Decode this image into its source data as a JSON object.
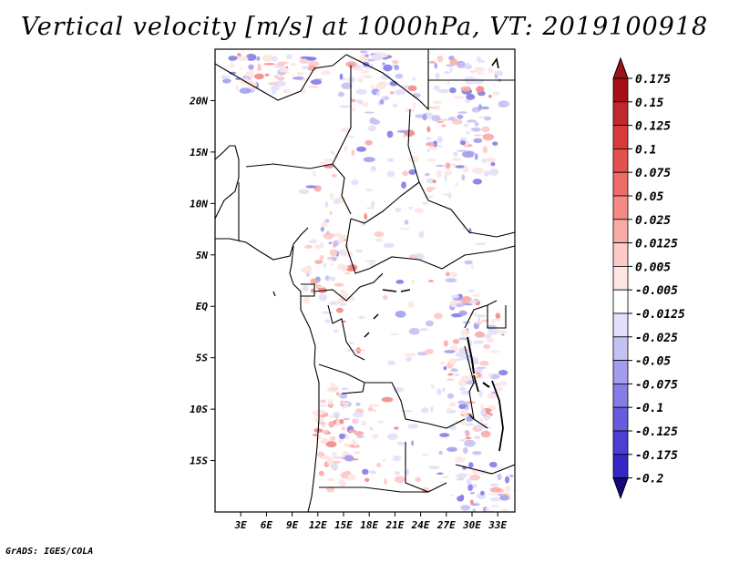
{
  "title": "Vertical velocity [m/s] at 1000hPa, VT: 2019100918",
  "footer": "GrADS: IGES/COLA",
  "map": {
    "lon_range": [
      0,
      35
    ],
    "lat_range": [
      -20,
      25
    ],
    "lon_ticks": [
      "3E",
      "6E",
      "9E",
      "12E",
      "15E",
      "18E",
      "21E",
      "24E",
      "27E",
      "30E",
      "33E"
    ],
    "lon_tick_values": [
      3,
      6,
      9,
      12,
      15,
      18,
      21,
      24,
      27,
      30,
      33
    ],
    "lat_ticks": [
      "20N",
      "15N",
      "10N",
      "5N",
      "EQ",
      "5S",
      "10S",
      "15S"
    ],
    "lat_tick_values": [
      20,
      15,
      10,
      5,
      0,
      -5,
      -10,
      -15
    ]
  },
  "colorbar": {
    "levels": [
      {
        "label": "0.175",
        "color": "#a50f15"
      },
      {
        "label": "0.15",
        "color": "#c1272d"
      },
      {
        "label": "0.125",
        "color": "#d8393c"
      },
      {
        "label": "0.1",
        "color": "#e4514f"
      },
      {
        "label": "0.075",
        "color": "#ee6b68"
      },
      {
        "label": "0.05",
        "color": "#f48a86"
      },
      {
        "label": "0.025",
        "color": "#f9aaa6"
      },
      {
        "label": "0.0125",
        "color": "#fccac7"
      },
      {
        "label": "0.005",
        "color": "#fde5e3"
      },
      {
        "label": "-0.005",
        "color": "#ffffff"
      },
      {
        "label": "-0.0125",
        "color": "#e2e0fb"
      },
      {
        "label": "-0.025",
        "color": "#c4c1f4"
      },
      {
        "label": "-0.05",
        "color": "#a49ded"
      },
      {
        "label": "-0.075",
        "color": "#857ce6"
      },
      {
        "label": "-0.1",
        "color": "#675bde"
      },
      {
        "label": "-0.125",
        "color": "#4c3fd3"
      },
      {
        "label": "-0.175",
        "color": "#3427c3"
      },
      {
        "label": "-0.2",
        "color": "#1e10a8"
      }
    ],
    "top_color": "#9b1217",
    "bottom_color": "#15097a"
  }
}
